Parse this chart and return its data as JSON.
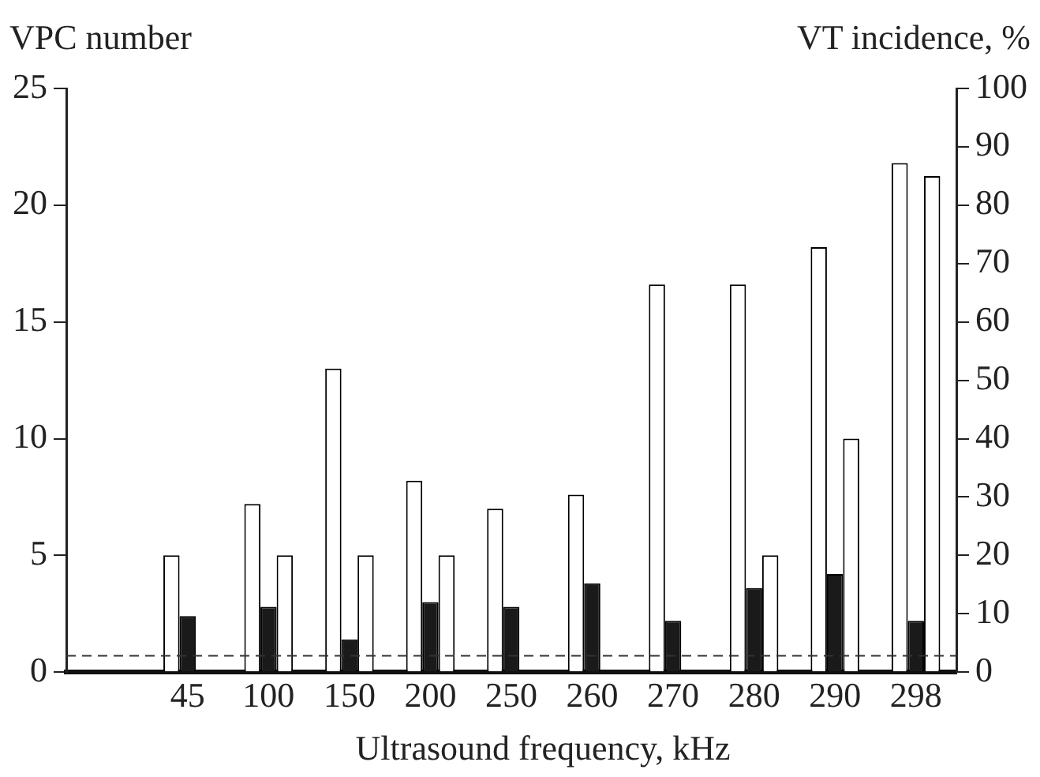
{
  "chart_data": {
    "type": "bar",
    "xlabel": "Ultrasound frequency, kHz",
    "ylabel": "VPC number",
    "y2label": "VT incidence, %",
    "categories": [
      null,
      "45",
      "100",
      "150",
      "200",
      "250",
      "260",
      "270",
      "280",
      "290",
      "298"
    ],
    "series": [
      {
        "color": "#ffffff",
        "values": [
          0,
          5,
          7.2,
          13,
          8.2,
          7,
          7.6,
          16.6,
          16.6,
          18.2,
          21.8
        ]
      },
      {
        "color": "#1a1a1a",
        "values": [
          0,
          2.4,
          2.8,
          1.4,
          3,
          2.8,
          3.8,
          2.2,
          3.6,
          4.2,
          2.2
        ]
      },
      {
        "color": "#ffffff",
        "axis": "y2",
        "values": [
          0,
          0,
          20,
          20,
          20,
          0,
          0,
          0,
          20,
          40,
          85
        ]
      }
    ],
    "ylim": [
      0,
      25
    ],
    "yticks": [
      0,
      5,
      10,
      15,
      20,
      25
    ],
    "y2lim": [
      0,
      100
    ],
    "y2ticks": [
      0,
      10,
      20,
      30,
      40,
      50,
      60,
      70,
      80,
      90,
      100
    ],
    "ref_lines": [
      {
        "axis": "y",
        "value": 0.7,
        "line_style": "dashed",
        "color": "#333333"
      }
    ],
    "grid": false,
    "legend": false
  }
}
